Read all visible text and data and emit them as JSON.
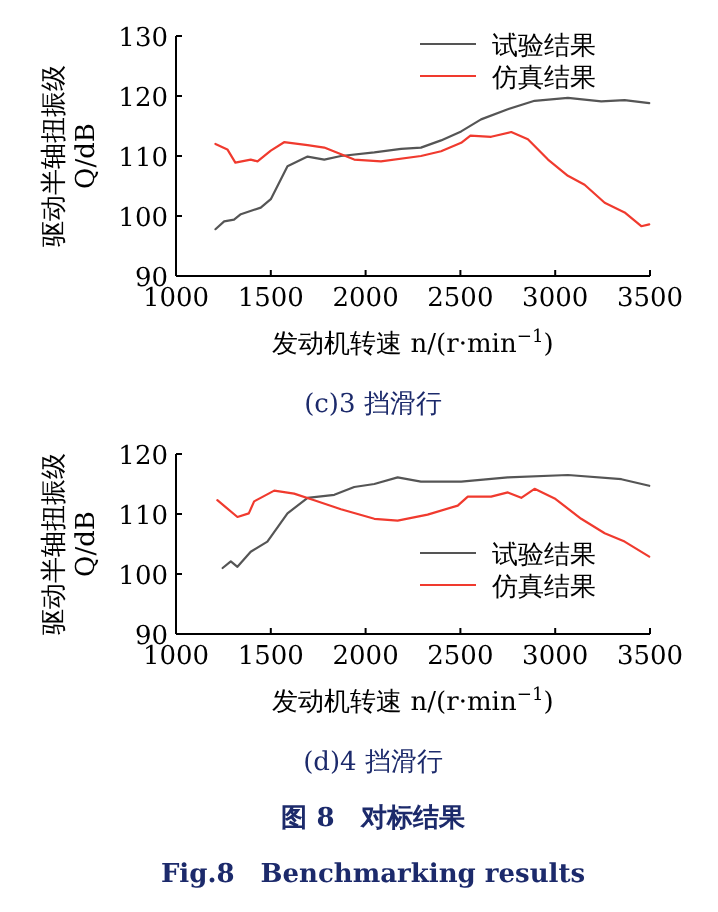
{
  "chart_data": [
    {
      "type": "line",
      "title": "(c)3 挡滑行",
      "xlabel": "发动机转速 n/(r·min$^{−1}$)",
      "ylabel": "驱动半轴扭振级\nQ/dB",
      "xlim": [
        1000,
        3500
      ],
      "ylim": [
        90,
        130
      ],
      "xticks": [
        1000,
        1500,
        2000,
        2500,
        3000,
        3500
      ],
      "yticks": [
        90,
        100,
        110,
        120,
        130
      ],
      "legend": "top right",
      "series": [
        {
          "name": "试验结果",
          "color": "#555555",
          "x": [
            1208,
            1254,
            1306,
            1342,
            1447,
            1500,
            1588,
            1694,
            1782,
            1870,
            2046,
            2187,
            2292,
            2398,
            2504,
            2609,
            2750,
            2891,
            3067,
            3243,
            3366,
            3496
          ],
          "values": [
            97.8,
            99.1,
            99.4,
            100.3,
            101.4,
            102.8,
            108.3,
            109.9,
            109.4,
            110,
            110.6,
            111.2,
            111.4,
            112.6,
            114.1,
            116.1,
            117.8,
            119.2,
            119.7,
            119.1,
            119.3,
            118.8
          ]
        },
        {
          "name": "仿真结果",
          "color": "#f03a2e",
          "x": [
            1208,
            1271,
            1313,
            1394,
            1430,
            1500,
            1570,
            1694,
            1782,
            1940,
            2081,
            2292,
            2398,
            2504,
            2553,
            2662,
            2768,
            2856,
            2962,
            3067,
            3155,
            3261,
            3366,
            3454,
            3496
          ],
          "values": [
            112,
            111.1,
            108.9,
            109.4,
            109.1,
            110.9,
            112.3,
            111.8,
            111.4,
            109.4,
            109.1,
            110,
            110.8,
            112.2,
            113.4,
            113.2,
            114,
            112.8,
            109.4,
            106.7,
            105.2,
            102.2,
            100.6,
            98.3,
            98.6
          ]
        }
      ]
    },
    {
      "type": "line",
      "title": "(d)4 挡滑行",
      "xlabel": "发动机转速 n/(r·min$^{−1}$)",
      "ylabel": "驱动半轴扭振级\nQ/dB",
      "xlim": [
        1000,
        3500
      ],
      "ylim": [
        90,
        120
      ],
      "xticks": [
        1000,
        1500,
        2000,
        2500,
        3000,
        3500
      ],
      "yticks": [
        90,
        100,
        110,
        120
      ],
      "legend": "right",
      "annotations": [
        "图 8　对标结果",
        "Fig.8　Benchmarking results"
      ],
      "series": [
        {
          "name": "试验结果",
          "color": "#555555",
          "x": [
            1246,
            1289,
            1324,
            1394,
            1482,
            1588,
            1694,
            1835,
            1940,
            2046,
            2169,
            2292,
            2504,
            2750,
            3067,
            3349,
            3496
          ],
          "values": [
            101,
            102.1,
            101.2,
            103.7,
            105.4,
            110.1,
            112.7,
            113.2,
            114.5,
            115,
            116.1,
            115.4,
            115.4,
            116.1,
            116.5,
            115.8,
            114.7
          ]
        },
        {
          "name": "仿真结果",
          "color": "#f03a2e",
          "x": [
            1218,
            1324,
            1384,
            1412,
            1518,
            1623,
            1729,
            1870,
            2046,
            2169,
            2327,
            2486,
            2539,
            2662,
            2750,
            2821,
            2891,
            2997,
            3137,
            3261,
            3366,
            3496
          ],
          "values": [
            112.3,
            109.5,
            110.1,
            112.1,
            113.9,
            113.4,
            112.3,
            110.8,
            109.2,
            108.9,
            109.9,
            111.4,
            112.9,
            112.9,
            113.6,
            112.7,
            114.2,
            112.6,
            109.2,
            106.8,
            105.4,
            102.9
          ]
        }
      ]
    }
  ]
}
